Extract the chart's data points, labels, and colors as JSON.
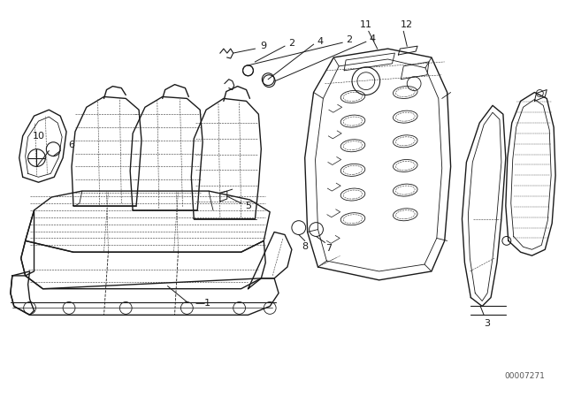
{
  "background_color": "#ffffff",
  "fig_width": 6.4,
  "fig_height": 4.48,
  "dpi": 100,
  "diagram_id": "00007271",
  "line_color": "#1a1a1a",
  "dash_color": "#333333",
  "lw_main": 1.0,
  "lw_thin": 0.6,
  "lw_dash": 0.5,
  "font_size": 8.0
}
